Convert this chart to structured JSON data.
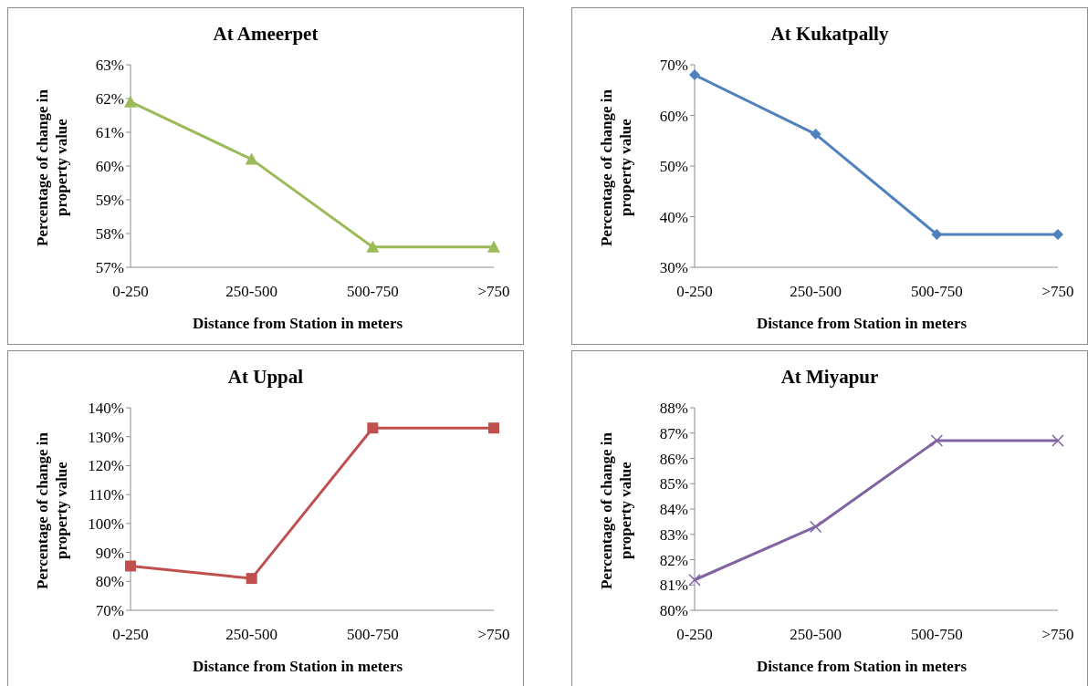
{
  "chart_data": [
    {
      "type": "line",
      "title": "At Ameerpet",
      "xlabel": "Distance from Station in meters",
      "ylabel": "Percentage of change in property value",
      "categories": [
        "0-250",
        "250-500",
        "500-750",
        ">750"
      ],
      "series": [
        {
          "color": "#9bbb59",
          "values": [
            61.9,
            60.2,
            57.6,
            57.6
          ]
        }
      ],
      "ylim": [
        57,
        63
      ],
      "yticks": [
        {
          "value": 57,
          "label": "57%"
        },
        {
          "value": 58,
          "label": "58%"
        },
        {
          "value": 59,
          "label": "59%"
        },
        {
          "value": 60,
          "label": "60%"
        },
        {
          "value": 61,
          "label": "61%"
        },
        {
          "value": 62,
          "label": "62%"
        },
        {
          "value": 63,
          "label": "63%"
        }
      ],
      "marker": "triangle",
      "grid": false,
      "legend": false
    },
    {
      "type": "line",
      "title": "At Kukatpally",
      "xlabel": "Distance from Station in meters",
      "ylabel": "Percentage of change in property value",
      "categories": [
        "0-250",
        "250-500",
        "500-750",
        ">750"
      ],
      "series": [
        {
          "color": "#4f81bd",
          "values": [
            68,
            56.3,
            36.5,
            36.5
          ]
        }
      ],
      "ylim": [
        30,
        70
      ],
      "yticks": [
        {
          "value": 30,
          "label": "30%"
        },
        {
          "value": 40,
          "label": "40%"
        },
        {
          "value": 50,
          "label": "50%"
        },
        {
          "value": 60,
          "label": "60%"
        },
        {
          "value": 70,
          "label": "70%"
        }
      ],
      "marker": "diamond",
      "grid": false,
      "legend": false
    },
    {
      "type": "line",
      "title": "At Uppal",
      "xlabel": "Distance from Station in meters",
      "ylabel": "Percentage of change in property value",
      "categories": [
        "0-250",
        "250-500",
        "500-750",
        ">750"
      ],
      "series": [
        {
          "color": "#c0504d",
          "values": [
            85.3,
            81,
            133,
            133
          ]
        }
      ],
      "ylim": [
        70,
        140
      ],
      "yticks": [
        {
          "value": 70,
          "label": "70%"
        },
        {
          "value": 80,
          "label": "80%"
        },
        {
          "value": 90,
          "label": "90%"
        },
        {
          "value": 100,
          "label": "100%"
        },
        {
          "value": 110,
          "label": "110%"
        },
        {
          "value": 120,
          "label": "120%"
        },
        {
          "value": 130,
          "label": "130%"
        },
        {
          "value": 140,
          "label": "140%"
        }
      ],
      "marker": "square",
      "grid": false,
      "legend": false
    },
    {
      "type": "line",
      "title": "At Miyapur",
      "xlabel": "Distance from Station in meters",
      "ylabel": "Percentage of change in property value",
      "categories": [
        "0-250",
        "250-500",
        "500-750",
        ">750"
      ],
      "series": [
        {
          "color": "#8064a2",
          "values": [
            81.2,
            83.3,
            86.7,
            86.7
          ]
        }
      ],
      "ylim": [
        80,
        88
      ],
      "yticks": [
        {
          "value": 80,
          "label": "80%"
        },
        {
          "value": 81,
          "label": "81%"
        },
        {
          "value": 82,
          "label": "82%"
        },
        {
          "value": 83,
          "label": "83%"
        },
        {
          "value": 84,
          "label": "84%"
        },
        {
          "value": 85,
          "label": "85%"
        },
        {
          "value": 86,
          "label": "86%"
        },
        {
          "value": 87,
          "label": "87%"
        },
        {
          "value": 88,
          "label": "88%"
        }
      ],
      "marker": "cross",
      "grid": false,
      "legend": false
    }
  ]
}
